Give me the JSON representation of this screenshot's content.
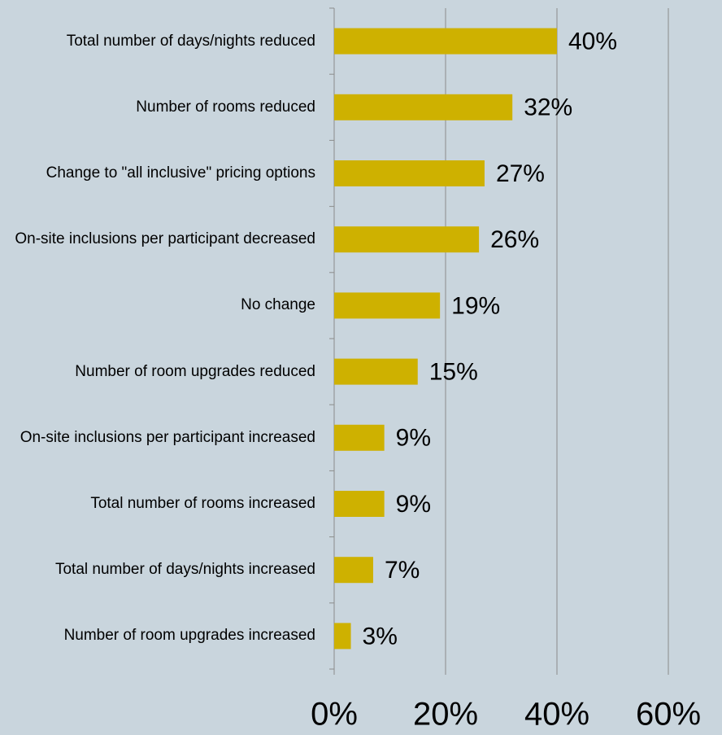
{
  "chart_data": {
    "type": "barh",
    "categories": [
      "Total number of days/nights reduced",
      "Number of rooms reduced",
      "Change to \"all inclusive\" pricing options",
      "On-site inclusions per participant decreased",
      "No change",
      "Number of room upgrades reduced",
      "On-site inclusions per participant increased",
      "Total number of rooms increased",
      "Total number of days/nights increased",
      "Number of room upgrades increased"
    ],
    "values": [
      40,
      32,
      27,
      26,
      19,
      15,
      9,
      9,
      7,
      3
    ],
    "value_labels": [
      "40%",
      "32%",
      "27%",
      "26%",
      "19%",
      "15%",
      "9%",
      "9%",
      "7%",
      "3%"
    ],
    "color": "#ceb100",
    "xlim": [
      0,
      60
    ],
    "xticks": [
      {
        "value": 0,
        "label": "0%"
      },
      {
        "value": 20,
        "label": "20%"
      },
      {
        "value": 40,
        "label": "40%"
      },
      {
        "value": 60,
        "label": "60%"
      }
    ],
    "grid": true
  }
}
